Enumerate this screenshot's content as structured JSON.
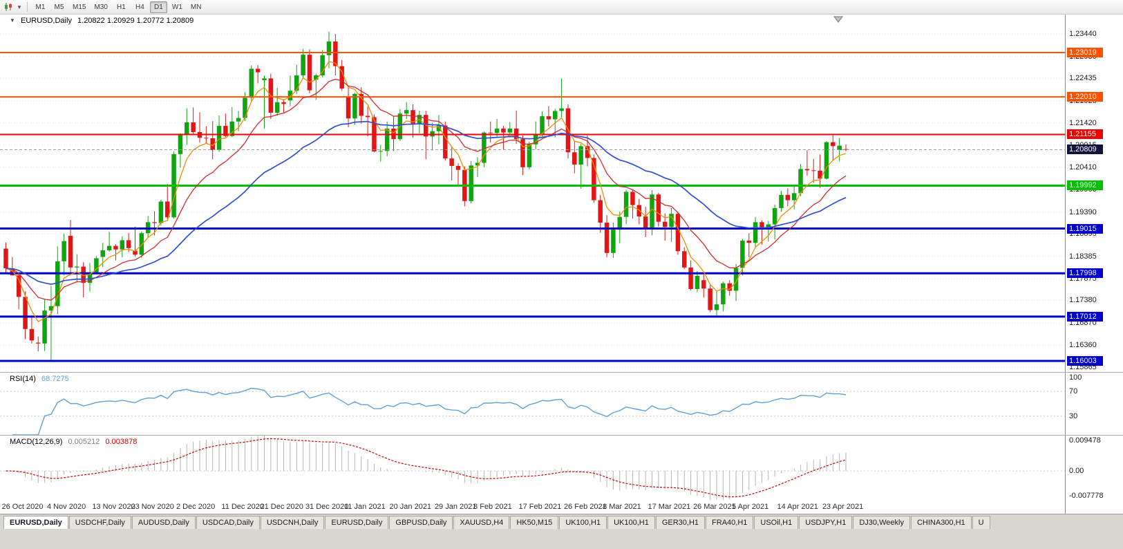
{
  "toolbar": {
    "icons": [
      "candlestick-chart-icon",
      "chevron-down-icon"
    ],
    "timeframes": [
      "M1",
      "M5",
      "M15",
      "M30",
      "H1",
      "H4",
      "D1",
      "W1",
      "MN"
    ],
    "active_timeframe": "D1"
  },
  "chart": {
    "header_symbol": "EURUSD,Daily",
    "header_ohlc": "1.20822 1.20929 1.20772 1.20809"
  },
  "chart_data": {
    "type": "candlestick",
    "symbol": "EURUSD",
    "period": "Daily",
    "y_top": 1.23884,
    "y_bottom": 1.15752,
    "y_axis_ticks": [
      "1.23440",
      "1.22930",
      "1.22435",
      "1.21925",
      "1.21420",
      "1.20915",
      "1.20410",
      "1.19900",
      "1.19390",
      "1.18895",
      "1.18385",
      "1.17875",
      "1.17380",
      "1.16870",
      "1.16360",
      "1.15865"
    ],
    "current_price": {
      "label": "1.20809",
      "value": 1.20809,
      "color": "#12123a"
    },
    "horizontal_lines": [
      {
        "label": "1.23019",
        "value": 1.23019,
        "color": "#ff5200",
        "width": 2
      },
      {
        "label": "1.22010",
        "value": 1.2201,
        "color": "#ff5200",
        "width": 2
      },
      {
        "label": "1.21155",
        "value": 1.21155,
        "color": "#f00000",
        "width": 2
      },
      {
        "label": "1.19992",
        "value": 1.19992,
        "color": "#00c000",
        "width": 3
      },
      {
        "label": "1.19015",
        "value": 1.19015,
        "color": "#0000c8",
        "width": 3
      },
      {
        "label": "1.17998",
        "value": 1.17998,
        "color": "#0000c8",
        "width": 3
      },
      {
        "label": "1.17012",
        "value": 1.17012,
        "color": "#0000c8",
        "width": 3
      },
      {
        "label": "1.16003",
        "value": 1.16003,
        "color": "#0000c8",
        "width": 3
      }
    ],
    "moving_averages": [
      {
        "type": "ema",
        "period": 5,
        "color": "#f08c00",
        "width": 1.3
      },
      {
        "type": "ema",
        "period": 13,
        "color": "#d42a2a",
        "width": 1.3
      },
      {
        "type": "ema",
        "period": 34,
        "color": "#2f4fd0",
        "width": 1.7
      }
    ],
    "candle_colors": {
      "up": "#10a410",
      "down": "#e11717"
    },
    "x_labels": [
      {
        "label": "26 Oct 2020",
        "i": 0
      },
      {
        "label": "4 Nov 2020",
        "i": 7
      },
      {
        "label": "13 Nov 2020",
        "i": 14
      },
      {
        "label": "23 Nov 2020",
        "i": 20
      },
      {
        "label": "2 Dec 2020",
        "i": 27
      },
      {
        "label": "11 Dec 2020",
        "i": 34
      },
      {
        "label": "21 Dec 2020",
        "i": 40
      },
      {
        "label": "31 Dec 2020",
        "i": 47
      },
      {
        "label": "11 Jan 2021",
        "i": 53
      },
      {
        "label": "20 Jan 2021",
        "i": 60
      },
      {
        "label": "29 Jan 2021",
        "i": 67
      },
      {
        "label": "8 Feb 2021",
        "i": 73
      },
      {
        "label": "17 Feb 2021",
        "i": 80
      },
      {
        "label": "26 Feb 2021",
        "i": 87
      },
      {
        "label": "8 Mar 2021",
        "i": 93
      },
      {
        "label": "17 Mar 2021",
        "i": 100
      },
      {
        "label": "26 Mar 2021",
        "i": 107
      },
      {
        "label": "5 Apr 2021",
        "i": 113
      },
      {
        "label": "14 Apr 2021",
        "i": 120
      },
      {
        "label": "23 Apr 2021",
        "i": 127
      }
    ],
    "candles": [
      [
        1.1856,
        1.187,
        1.18,
        1.1811
      ],
      [
        1.1811,
        1.1837,
        1.1795,
        1.1795
      ],
      [
        1.1795,
        1.18,
        1.1718,
        1.1746
      ],
      [
        1.1746,
        1.1759,
        1.165,
        1.1673
      ],
      [
        1.1673,
        1.1704,
        1.164,
        1.1647
      ],
      [
        1.1642,
        1.1656,
        1.1622,
        1.164
      ],
      [
        1.164,
        1.174,
        1.1623,
        1.1715
      ],
      [
        1.1715,
        1.1771,
        1.1603,
        1.1725
      ],
      [
        1.1725,
        1.1861,
        1.1706,
        1.1827
      ],
      [
        1.1827,
        1.189,
        1.1795,
        1.1873
      ],
      [
        1.1885,
        1.1921,
        1.1795,
        1.1813
      ],
      [
        1.1813,
        1.1843,
        1.1779,
        1.1815
      ],
      [
        1.1815,
        1.1825,
        1.1745,
        1.1778
      ],
      [
        1.1778,
        1.1823,
        1.1758,
        1.1802
      ],
      [
        1.1802,
        1.1839,
        1.1799,
        1.1834
      ],
      [
        1.1837,
        1.1869,
        1.1814,
        1.1852
      ],
      [
        1.1852,
        1.1894,
        1.1849,
        1.1862
      ],
      [
        1.1862,
        1.1866,
        1.1829,
        1.1854
      ],
      [
        1.1854,
        1.1884,
        1.1836,
        1.1875
      ],
      [
        1.1875,
        1.1891,
        1.1848,
        1.1857
      ],
      [
        1.1851,
        1.1906,
        1.1838,
        1.1842
      ],
      [
        1.1842,
        1.1895,
        1.1835,
        1.1891
      ],
      [
        1.1891,
        1.193,
        1.1881,
        1.1916
      ],
      [
        1.1916,
        1.1941,
        1.1886,
        1.1914
      ],
      [
        1.1914,
        1.1967,
        1.1908,
        1.1963
      ],
      [
        1.1963,
        1.2003,
        1.1923,
        1.1927
      ],
      [
        1.1927,
        1.2077,
        1.1924,
        1.2071
      ],
      [
        1.2071,
        1.2118,
        1.204,
        1.2115
      ],
      [
        1.2115,
        1.2175,
        1.2092,
        1.2143
      ],
      [
        1.2143,
        1.2177,
        1.2115,
        1.2121
      ],
      [
        1.2121,
        1.2166,
        1.2097,
        1.2108
      ],
      [
        1.2108,
        1.2134,
        1.2094,
        1.2107
      ],
      [
        1.2107,
        1.2146,
        1.2059,
        1.208
      ],
      [
        1.208,
        1.2159,
        1.2076,
        1.2135
      ],
      [
        1.2135,
        1.2163,
        1.211,
        1.2112
      ],
      [
        1.2112,
        1.2178,
        1.211,
        1.2145
      ],
      [
        1.2145,
        1.2169,
        1.2123,
        1.2153
      ],
      [
        1.2153,
        1.2212,
        1.2146,
        1.2199
      ],
      [
        1.2199,
        1.2273,
        1.2191,
        1.2265
      ],
      [
        1.2265,
        1.2273,
        1.2232,
        1.2257
      ],
      [
        1.2239,
        1.225,
        1.2129,
        1.2243
      ],
      [
        1.2243,
        1.2254,
        1.2151,
        1.2165
      ],
      [
        1.2165,
        1.2222,
        1.2158,
        1.2189
      ],
      [
        1.2189,
        1.2196,
        1.2163,
        1.2185
      ],
      [
        1.2193,
        1.225,
        1.218,
        1.2215
      ],
      [
        1.2215,
        1.2274,
        1.2207,
        1.225
      ],
      [
        1.225,
        1.231,
        1.2243,
        1.2297
      ],
      [
        1.2297,
        1.2309,
        1.2209,
        1.2216
      ],
      [
        1.224,
        1.2254,
        1.2194,
        1.225
      ],
      [
        1.225,
        1.2307,
        1.2245,
        1.2296
      ],
      [
        1.2296,
        1.2349,
        1.2266,
        1.2327
      ],
      [
        1.2327,
        1.2344,
        1.225,
        1.2271
      ],
      [
        1.2271,
        1.2285,
        1.2215,
        1.222
      ],
      [
        1.22,
        1.2226,
        1.2132,
        1.2152
      ],
      [
        1.2152,
        1.221,
        1.2137,
        1.2208
      ],
      [
        1.2208,
        1.2223,
        1.214,
        1.2158
      ],
      [
        1.2158,
        1.2179,
        1.2111,
        1.2155
      ],
      [
        1.2155,
        1.2161,
        1.2075,
        1.2077
      ],
      [
        1.2077,
        1.2092,
        1.2054,
        1.2078
      ],
      [
        1.2078,
        1.2145,
        1.2066,
        1.2129
      ],
      [
        1.2129,
        1.2158,
        1.2078,
        1.2105
      ],
      [
        1.2105,
        1.2173,
        1.2101,
        1.2163
      ],
      [
        1.2163,
        1.2189,
        1.2151,
        1.2171
      ],
      [
        1.2171,
        1.2184,
        1.2108,
        1.214
      ],
      [
        1.214,
        1.217,
        1.2118,
        1.216
      ],
      [
        1.216,
        1.2169,
        1.2059,
        1.2111
      ],
      [
        1.2111,
        1.2142,
        1.2079,
        1.2123
      ],
      [
        1.2123,
        1.216,
        1.2093,
        1.2136
      ],
      [
        1.2136,
        1.2145,
        1.2056,
        1.2061
      ],
      [
        1.2061,
        1.2087,
        1.2011,
        1.2044
      ],
      [
        1.2044,
        1.205,
        1.1999,
        1.2035
      ],
      [
        1.2035,
        1.2043,
        1.1952,
        1.1964
      ],
      [
        1.1964,
        1.2055,
        1.1959,
        1.2045
      ],
      [
        1.2045,
        1.2064,
        1.2019,
        1.2051
      ],
      [
        1.2051,
        1.2122,
        1.2041,
        1.212
      ],
      [
        1.212,
        1.2145,
        1.2097,
        1.2119
      ],
      [
        1.2119,
        1.2151,
        1.211,
        1.2129
      ],
      [
        1.2129,
        1.2135,
        1.2081,
        1.212
      ],
      [
        1.212,
        1.2144,
        1.2109,
        1.2129
      ],
      [
        1.2129,
        1.217,
        1.2094,
        1.2105
      ],
      [
        1.2105,
        1.2113,
        1.2023,
        1.2041
      ],
      [
        1.2041,
        1.2099,
        1.2036,
        1.2093
      ],
      [
        1.2093,
        1.2145,
        1.2082,
        1.2117
      ],
      [
        1.2117,
        1.2168,
        1.2107,
        1.2157
      ],
      [
        1.2157,
        1.218,
        1.2134,
        1.215
      ],
      [
        1.215,
        1.2174,
        1.2109,
        1.2169
      ],
      [
        1.2169,
        1.2243,
        1.2155,
        1.2175
      ],
      [
        1.2175,
        1.2184,
        1.2061,
        1.2075
      ],
      [
        1.2075,
        1.2101,
        1.2027,
        1.2047
      ],
      [
        1.2047,
        1.2094,
        1.1992,
        1.2089
      ],
      [
        1.2089,
        1.2113,
        1.2043,
        1.2062
      ],
      [
        1.2062,
        1.207,
        1.196,
        1.1966
      ],
      [
        1.1966,
        1.1978,
        1.1892,
        1.1915
      ],
      [
        1.1915,
        1.1932,
        1.1836,
        1.1846
      ],
      [
        1.1846,
        1.1915,
        1.1835,
        1.1899
      ],
      [
        1.1899,
        1.194,
        1.1868,
        1.1928
      ],
      [
        1.1928,
        1.199,
        1.1912,
        1.1985
      ],
      [
        1.1985,
        1.1989,
        1.1924,
        1.1955
      ],
      [
        1.1955,
        1.1969,
        1.1911,
        1.1929
      ],
      [
        1.1929,
        1.1951,
        1.1882,
        1.19
      ],
      [
        1.19,
        1.1989,
        1.1886,
        1.1979
      ],
      [
        1.1979,
        1.1983,
        1.1906,
        1.1917
      ],
      [
        1.1917,
        1.1936,
        1.1874,
        1.1905
      ],
      [
        1.1905,
        1.1948,
        1.1871,
        1.1935
      ],
      [
        1.1935,
        1.194,
        1.1842,
        1.185
      ],
      [
        1.185,
        1.1859,
        1.1809,
        1.1813
      ],
      [
        1.1813,
        1.1829,
        1.1761,
        1.1764
      ],
      [
        1.1764,
        1.1805,
        1.1757,
        1.1794
      ],
      [
        1.1784,
        1.1797,
        1.1745,
        1.1765
      ],
      [
        1.1765,
        1.1774,
        1.1711,
        1.1716
      ],
      [
        1.1716,
        1.176,
        1.1704,
        1.1729
      ],
      [
        1.1729,
        1.1781,
        1.1713,
        1.1777
      ],
      [
        1.1777,
        1.1784,
        1.1749,
        1.176
      ],
      [
        1.176,
        1.1821,
        1.1737,
        1.1812
      ],
      [
        1.1812,
        1.1878,
        1.1795,
        1.1874
      ],
      [
        1.1874,
        1.1891,
        1.1836,
        1.1869
      ],
      [
        1.1869,
        1.1928,
        1.186,
        1.1916
      ],
      [
        1.1916,
        1.192,
        1.1865,
        1.1899
      ],
      [
        1.1899,
        1.1919,
        1.1872,
        1.1911
      ],
      [
        1.1911,
        1.1956,
        1.1877,
        1.1948
      ],
      [
        1.1948,
        1.1987,
        1.194,
        1.1978
      ],
      [
        1.1978,
        1.1993,
        1.1952,
        1.1966
      ],
      [
        1.1966,
        1.1998,
        1.1945,
        1.1982
      ],
      [
        1.1982,
        1.2048,
        1.1975,
        1.2037
      ],
      [
        1.2037,
        1.208,
        1.2022,
        1.2034
      ],
      [
        1.2034,
        1.206,
        1.2005,
        1.2033
      ],
      [
        1.2033,
        1.207,
        1.1994,
        1.2015
      ],
      [
        1.2015,
        1.2101,
        1.2013,
        1.2098
      ],
      [
        1.2098,
        1.2117,
        1.2056,
        1.2089
      ],
      [
        1.208,
        1.2108,
        1.2055,
        1.209
      ],
      [
        1.20822,
        1.20929,
        1.20772,
        1.20809
      ]
    ]
  },
  "rsi": {
    "name": "RSI(14)",
    "value": "68.7275",
    "period": 14,
    "color": "#5f9fd6",
    "levels": [
      {
        "label": "100",
        "value": 100
      },
      {
        "label": "70",
        "value": 70
      },
      {
        "label": "30",
        "value": 30
      }
    ],
    "level_lines": [
      70,
      30
    ]
  },
  "macd": {
    "name": "MACD(12,26,9)",
    "value_main": "0.005212",
    "value_signal": "0.003878",
    "fast": 12,
    "slow": 26,
    "signal": 9,
    "histogram_color": "#b4b4b4",
    "signal_color": "#cc0000",
    "scale_max": 0.009478,
    "scale_min": -0.007778,
    "axis": [
      {
        "label": "0.009478",
        "value": 0.009478
      },
      {
        "label": "0.00",
        "value": 0
      },
      {
        "label": "-0.007778",
        "value": -0.007778
      }
    ]
  },
  "tabs": {
    "active_index": 0,
    "items": [
      "EURUSD,Daily",
      "USDCHF,Daily",
      "AUDUSD,Daily",
      "USDCAD,Daily",
      "USDCNH,Daily",
      "EURUSD,Daily",
      "GBPUSD,Daily",
      "XAUUSD,H4",
      "HK50,M15",
      "UK100,H1",
      "UK100,H1",
      "GER30,H1",
      "FRA40,H1",
      "USOil,H1",
      "USDJPY,H1",
      "DJ30,Weekly",
      "CHINA300,H1",
      "U"
    ]
  }
}
